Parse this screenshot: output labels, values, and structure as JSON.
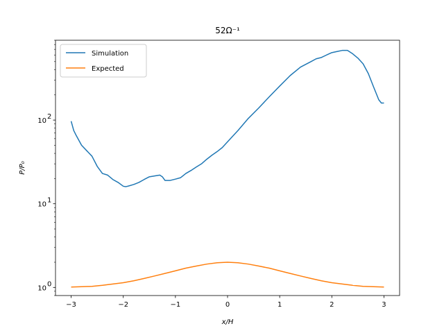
{
  "chart_data": {
    "type": "line",
    "title": "52Ω⁻¹",
    "xlabel": "x/H",
    "ylabel": "P/P₀",
    "xscale": "linear",
    "yscale": "log",
    "xlim": [
      -3.3,
      3.3
    ],
    "ylim": [
      0.8,
      900
    ],
    "xticks": [
      -3,
      -2,
      -1,
      0,
      1,
      2,
      3
    ],
    "xtick_labels": [
      "−3",
      "−2",
      "−1",
      "0",
      "1",
      "2",
      "3"
    ],
    "yticks": [
      1,
      10,
      100
    ],
    "ytick_labels": [
      "10",
      "10",
      "10"
    ],
    "ytick_exponents": [
      "0",
      "1",
      "2"
    ],
    "grid": false,
    "legend_position": "upper-left",
    "series": [
      {
        "name": "Simulation",
        "color": "#1f77b4",
        "x": [
          -3.0,
          -2.95,
          -2.9,
          -2.8,
          -2.7,
          -2.6,
          -2.5,
          -2.4,
          -2.3,
          -2.2,
          -2.1,
          -2.0,
          -1.95,
          -1.9,
          -1.8,
          -1.7,
          -1.6,
          -1.5,
          -1.4,
          -1.3,
          -1.25,
          -1.2,
          -1.15,
          -1.1,
          -1.0,
          -0.9,
          -0.8,
          -0.7,
          -0.6,
          -0.5,
          -0.4,
          -0.3,
          -0.2,
          -0.1,
          0.0,
          0.2,
          0.4,
          0.6,
          0.8,
          1.0,
          1.2,
          1.4,
          1.6,
          1.7,
          1.8,
          1.9,
          2.0,
          2.1,
          2.2,
          2.3,
          2.4,
          2.5,
          2.6,
          2.7,
          2.8,
          2.9,
          2.95,
          3.0
        ],
        "y": [
          97,
          75,
          65,
          50,
          43,
          37,
          28,
          23,
          22,
          19.5,
          18,
          16.2,
          16,
          16.3,
          17,
          18,
          19.5,
          21,
          21.5,
          22,
          21,
          19,
          19,
          19,
          19.7,
          20.5,
          23,
          25,
          27.5,
          30,
          34,
          38,
          42,
          47,
          55,
          75,
          105,
          140,
          190,
          255,
          340,
          430,
          500,
          540,
          560,
          600,
          640,
          660,
          680,
          680,
          620,
          550,
          470,
          360,
          250,
          175,
          160,
          160
        ]
      },
      {
        "name": "Expected",
        "color": "#ff7f0e",
        "x": [
          -3.0,
          -2.8,
          -2.6,
          -2.4,
          -2.2,
          -2.0,
          -1.8,
          -1.6,
          -1.4,
          -1.2,
          -1.0,
          -0.8,
          -0.6,
          -0.4,
          -0.2,
          0.0,
          0.2,
          0.4,
          0.6,
          0.8,
          1.0,
          1.2,
          1.4,
          1.6,
          1.8,
          2.0,
          2.2,
          2.4,
          2.6,
          2.8,
          3.0
        ],
        "y": [
          1.01,
          1.02,
          1.03,
          1.06,
          1.1,
          1.14,
          1.2,
          1.28,
          1.37,
          1.47,
          1.58,
          1.7,
          1.8,
          1.9,
          1.97,
          2.0,
          1.97,
          1.9,
          1.8,
          1.7,
          1.58,
          1.47,
          1.37,
          1.28,
          1.2,
          1.14,
          1.1,
          1.06,
          1.03,
          1.02,
          1.01
        ]
      }
    ]
  }
}
